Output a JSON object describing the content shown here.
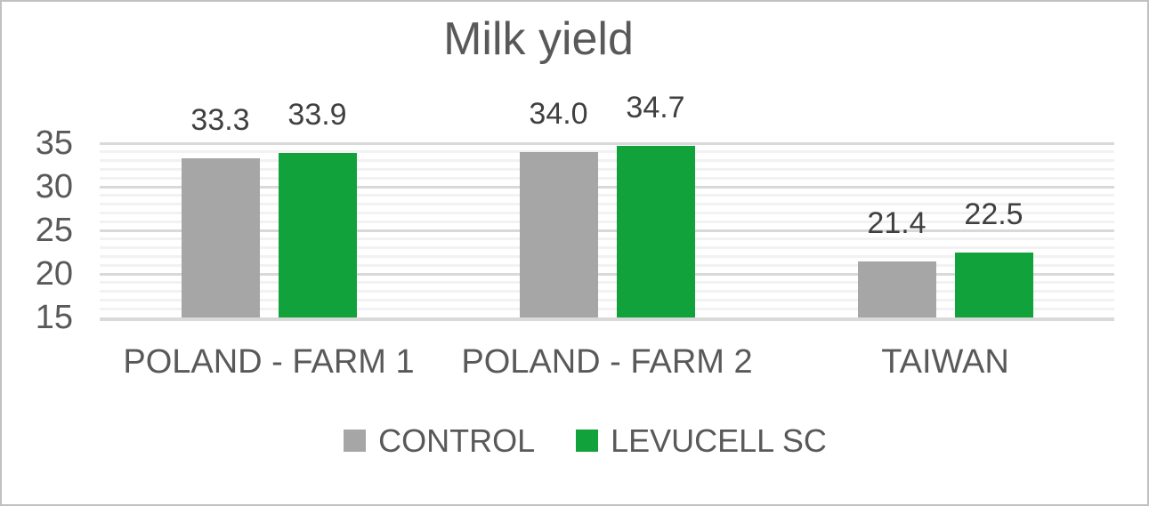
{
  "frame": {
    "background": "#ffffff",
    "border_color": "#c3c1bf"
  },
  "chart_data": {
    "type": "bar",
    "title": "Milk yield",
    "categories": [
      "POLAND - FARM 1",
      "POLAND - FARM 2",
      "TAIWAN"
    ],
    "series": [
      {
        "name": "CONTROL",
        "color": "#a6a6a6",
        "values": [
          33.3,
          34.0,
          21.4
        ],
        "value_labels": [
          "33.3",
          "34.0",
          "21.4"
        ]
      },
      {
        "name": "LEVUCELL SC",
        "color": "#12a23b",
        "values": [
          33.9,
          34.7,
          22.5
        ],
        "value_labels": [
          "33.9",
          "34.7",
          "22.5"
        ]
      }
    ],
    "y_axis": {
      "min": 15,
      "max": 35,
      "major_unit": 5,
      "minor_unit": 1,
      "tick_labels": [
        "15",
        "20",
        "25",
        "30",
        "35"
      ]
    },
    "grid": {
      "major": true,
      "minor": true,
      "major_color": "#d9d9d9",
      "minor_color": "#f2f2f2",
      "axis_line_color": "#d9d9d9"
    },
    "legend_position": "bottom",
    "text_colors": {
      "title": "#595959",
      "axis_labels": "#595959",
      "category_labels": "#595959",
      "legend_labels": "#595959",
      "data_labels": "#404040"
    }
  }
}
